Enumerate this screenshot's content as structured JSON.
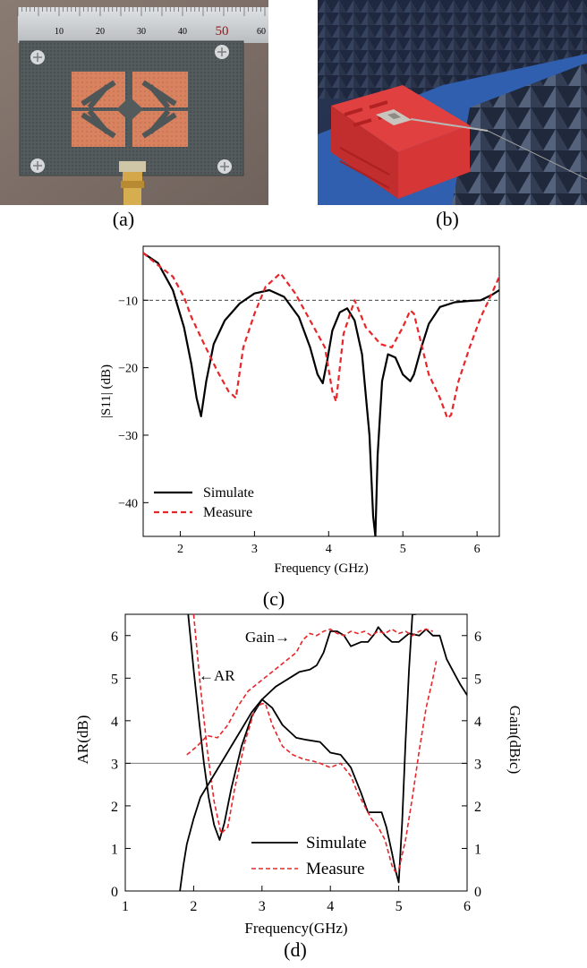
{
  "captions": {
    "a": "(a)",
    "b": "(b)",
    "c": "(c)",
    "d": "(d)"
  },
  "ruler": {
    "ticks": [
      "10",
      "20",
      "30",
      "40",
      "50",
      "60"
    ]
  },
  "colors": {
    "simulate": "#000000",
    "measure": "#e8262a",
    "copper": "#d9825f",
    "substrate": "#4f5658",
    "foam": "#e03b3b",
    "absorber": "#1f2a40"
  },
  "icons": {
    "connector": "sma-connector-icon",
    "screw": "screw-icon",
    "absorber": "absorber-cone-icon"
  },
  "chart_data": [
    {
      "id": "c",
      "type": "line",
      "xlabel": "Frequency (GHz)",
      "ylabel": "|S11| (dB)",
      "xlim": [
        1.5,
        6.3
      ],
      "ylim": [
        -45,
        -2
      ],
      "xticks": [
        2,
        3,
        4,
        5,
        6
      ],
      "yticks": [
        -40,
        -30,
        -20,
        -10
      ],
      "ytick_labels": [
        "−40",
        "−30",
        "−20",
        "−10"
      ],
      "reference_line": -10,
      "legend": "bottom-left",
      "series": [
        {
          "name": "Simulate",
          "style": "solid",
          "x": [
            1.5,
            1.7,
            1.9,
            2.05,
            2.15,
            2.22,
            2.28,
            2.35,
            2.45,
            2.6,
            2.8,
            3.0,
            3.2,
            3.4,
            3.6,
            3.75,
            3.85,
            3.92,
            3.98,
            4.05,
            4.15,
            4.25,
            4.35,
            4.45,
            4.55,
            4.6,
            4.63,
            4.66,
            4.72,
            4.8,
            4.9,
            5.0,
            5.1,
            5.15,
            5.25,
            5.35,
            5.5,
            5.7,
            5.9,
            6.05,
            6.2,
            6.3
          ],
          "y": [
            -3,
            -4.5,
            -8.5,
            -14,
            -19.5,
            -24.5,
            -27.2,
            -22,
            -16.5,
            -13,
            -10.5,
            -9,
            -8.5,
            -9.5,
            -12.5,
            -17,
            -21,
            -22.3,
            -19,
            -14.5,
            -11.8,
            -11.2,
            -13,
            -18,
            -30,
            -42,
            -45,
            -33,
            -22,
            -18,
            -18.5,
            -21,
            -22,
            -21,
            -17,
            -13.5,
            -11,
            -10.3,
            -10.1,
            -10,
            -9.2,
            -8.5
          ]
        },
        {
          "name": "Measure",
          "style": "dashed",
          "x": [
            1.5,
            1.7,
            1.9,
            2.05,
            2.15,
            2.3,
            2.5,
            2.65,
            2.75,
            2.85,
            3.0,
            3.15,
            3.35,
            3.55,
            3.75,
            3.95,
            4.05,
            4.1,
            4.2,
            4.35,
            4.5,
            4.7,
            4.85,
            5.0,
            5.1,
            5.15,
            5.25,
            5.35,
            5.5,
            5.6,
            5.65,
            5.75,
            5.9,
            6.05,
            6.2,
            6.3
          ],
          "y": [
            -3,
            -4.8,
            -6.5,
            -9.5,
            -12.5,
            -16,
            -20.5,
            -23.5,
            -24.5,
            -17,
            -12,
            -8,
            -6,
            -9,
            -13,
            -17,
            -23.5,
            -25,
            -15,
            -10,
            -14,
            -16.5,
            -17,
            -14,
            -11.5,
            -12,
            -16.5,
            -21,
            -24.5,
            -27.5,
            -27,
            -22,
            -17,
            -12.5,
            -9,
            -6.5
          ]
        }
      ]
    },
    {
      "id": "d",
      "type": "line",
      "xlabel": "Frequency(GHz)",
      "ylabel_left": "AR(dB)",
      "ylabel_right": "Gain(dBic)",
      "xlim": [
        1,
        6
      ],
      "ylim_left": [
        0,
        6.5
      ],
      "ylim_right": [
        0,
        6.5
      ],
      "xticks": [
        1,
        2,
        3,
        4,
        5,
        6
      ],
      "yticks": [
        0,
        1,
        2,
        3,
        4,
        5,
        6
      ],
      "reference_line": 3,
      "legend": "bottom-center",
      "annotations": [
        {
          "text": "←AR",
          "x": 2.1,
          "y": 5.1
        },
        {
          "text": "Gain→",
          "x": 1.75,
          "y": 5.95
        }
      ],
      "series": [
        {
          "name": "AR Simulate",
          "legend_label": "Simulate",
          "style": "solid",
          "x": [
            1.92,
            2.0,
            2.08,
            2.15,
            2.22,
            2.3,
            2.38,
            2.45,
            2.55,
            2.7,
            2.85,
            3.0,
            3.15,
            3.3,
            3.5,
            3.65,
            3.85,
            4.0,
            4.15,
            4.3,
            4.45,
            4.55,
            4.65,
            4.75,
            4.82,
            4.9,
            4.95,
            5.0,
            5.05,
            5.1,
            5.15,
            5.2,
            5.25
          ],
          "y": [
            6.5,
            5.2,
            4.0,
            3.0,
            2.2,
            1.55,
            1.2,
            1.6,
            2.4,
            3.4,
            4.1,
            4.5,
            4.3,
            3.9,
            3.6,
            3.55,
            3.5,
            3.25,
            3.2,
            2.9,
            2.3,
            1.85,
            1.85,
            1.85,
            1.5,
            0.9,
            0.5,
            0.2,
            1.6,
            3.5,
            5.2,
            6.5,
            6.5
          ]
        },
        {
          "name": "AR Measure",
          "legend_label": "Measure",
          "style": "dashed",
          "x": [
            2.0,
            2.1,
            2.2,
            2.3,
            2.4,
            2.5,
            2.6,
            2.75,
            2.9,
            3.0,
            3.05,
            3.15,
            3.3,
            3.45,
            3.6,
            3.75,
            3.85,
            4.0,
            4.15,
            4.3,
            4.4,
            4.5,
            4.6,
            4.7,
            4.8,
            4.9,
            4.95,
            5.0,
            5.1,
            5.2,
            5.3,
            5.4,
            5.5,
            5.55
          ],
          "y": [
            6.5,
            4.8,
            3.3,
            2.1,
            1.35,
            1.5,
            2.4,
            3.5,
            4.3,
            4.4,
            4.4,
            3.9,
            3.4,
            3.2,
            3.1,
            3.05,
            3.0,
            2.9,
            3.0,
            2.7,
            2.3,
            2.0,
            1.7,
            1.5,
            1.2,
            0.6,
            0.45,
            0.5,
            1.2,
            2.2,
            3.3,
            4.3,
            5.0,
            5.4
          ]
        },
        {
          "name": "Gain Simulate",
          "style": "solid",
          "x": [
            1.8,
            1.85,
            1.9,
            2.0,
            2.1,
            2.25,
            2.4,
            2.55,
            2.7,
            2.85,
            3.0,
            3.2,
            3.4,
            3.55,
            3.7,
            3.8,
            3.9,
            4.0,
            4.1,
            4.2,
            4.3,
            4.45,
            4.55,
            4.65,
            4.7,
            4.8,
            4.9,
            5.0,
            5.15,
            5.3,
            5.4,
            5.5,
            5.6,
            5.7,
            5.8,
            5.9,
            6.0
          ],
          "y": [
            0.0,
            0.6,
            1.1,
            1.7,
            2.2,
            2.6,
            3.0,
            3.4,
            3.8,
            4.2,
            4.5,
            4.8,
            5.0,
            5.15,
            5.2,
            5.3,
            5.6,
            6.1,
            6.1,
            6.0,
            5.75,
            5.85,
            5.85,
            6.05,
            6.2,
            6.0,
            5.85,
            5.85,
            6.05,
            6.0,
            6.15,
            6.0,
            6.0,
            5.45,
            5.15,
            4.85,
            4.6
          ]
        },
        {
          "name": "Gain Measure",
          "style": "dashed",
          "x": [
            1.9,
            2.05,
            2.2,
            2.35,
            2.5,
            2.65,
            2.8,
            3.5,
            3.6,
            3.7,
            3.8,
            3.9,
            4.0,
            4.1,
            4.2,
            4.3,
            4.4,
            4.5,
            4.6,
            4.7,
            4.8,
            4.9,
            5.0,
            5.1,
            5.2,
            5.3,
            5.4,
            5.5
          ],
          "y": [
            3.2,
            3.4,
            3.65,
            3.6,
            3.9,
            4.35,
            4.7,
            5.6,
            5.9,
            6.05,
            6.0,
            6.1,
            6.15,
            6.05,
            6.0,
            6.1,
            6.05,
            6.1,
            6.0,
            6.1,
            6.05,
            6.15,
            6.05,
            6.1,
            6.0,
            6.1,
            6.15,
            6.1
          ]
        }
      ]
    }
  ]
}
